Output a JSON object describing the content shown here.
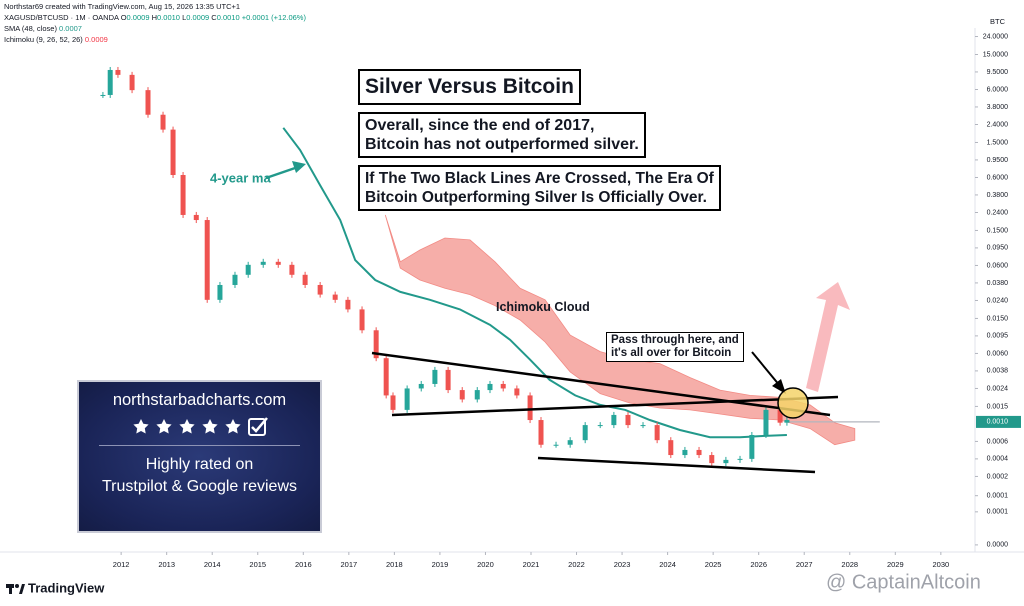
{
  "header": {
    "attribution": "Northstar69 created with TradingView.com, Aug 15, 2026 13:35 UTC+1",
    "symbol": "XAGUSD/BTCUSD · 1M · OANDA",
    "ohlc": [
      {
        "key": "O",
        "value": "0.0009"
      },
      {
        "key": "H",
        "value": "0.0010"
      },
      {
        "key": "L",
        "value": "0.0009"
      },
      {
        "key": "C",
        "value": "0.0010"
      }
    ],
    "change": "+0.0001 (+12.06%)"
  },
  "annotations": {
    "title": "Silver Versus Bitcoin",
    "note1": [
      "Overall, since the end of 2017,",
      "Bitcoin has not outperformed silver."
    ],
    "note2": [
      "If The Two Black Lines Are Crossed, The Era Of",
      "Bitcoin Outperforming Silver Is Officially Over."
    ],
    "ma_label": "4-year ma",
    "callout": [
      "Pass through here, and",
      "it's all over for Bitcoin"
    ]
  },
  "badge": {
    "site": "northstarbadcharts.com",
    "lines": [
      "Highly rated on",
      "Trustpilot & Google reviews"
    ]
  },
  "footer": {
    "brand": "TradingView",
    "watermark": "@ CaptainAltcoin"
  },
  "chart_data": {
    "type": "candlestick",
    "currency": "BTC",
    "up_color": "#26a69a",
    "down_color": "#ef5350",
    "log_scale": true,
    "grid": false,
    "xlim": [
      2009.34,
      2030.75
    ],
    "xticks": [
      2012,
      2013,
      2014,
      2015,
      2016,
      2017,
      2018,
      2019,
      2020,
      2021,
      2022,
      2023,
      2024,
      2025,
      2026,
      2027,
      2028,
      2029,
      2030
    ],
    "ylim": [
      3.5e-05,
      30
    ],
    "yticks": [
      {
        "value": 24,
        "label": "24.0000"
      },
      {
        "value": 15,
        "label": "15.0000"
      },
      {
        "value": 9.5,
        "label": "9.5000"
      },
      {
        "value": 6,
        "label": "6.0000"
      },
      {
        "value": 3.8,
        "label": "3.8000"
      },
      {
        "value": 2.4,
        "label": "2.4000"
      },
      {
        "value": 1.5,
        "label": "1.5000"
      },
      {
        "value": 0.95,
        "label": "0.9500"
      },
      {
        "value": 0.6,
        "label": "0.6000"
      },
      {
        "value": 0.38,
        "label": "0.3800"
      },
      {
        "value": 0.24,
        "label": "0.2400"
      },
      {
        "value": 0.15,
        "label": "0.1500"
      },
      {
        "value": 0.095,
        "label": "0.0950"
      },
      {
        "value": 0.06,
        "label": "0.0600"
      },
      {
        "value": 0.038,
        "label": "0.0380"
      },
      {
        "value": 0.024,
        "label": "0.0240"
      },
      {
        "value": 0.015,
        "label": "0.0150"
      },
      {
        "value": 0.0095,
        "label": "0.0095"
      },
      {
        "value": 0.006,
        "label": "0.0060"
      },
      {
        "value": 0.0038,
        "label": "0.0038"
      },
      {
        "value": 0.0024,
        "label": "0.0024"
      },
      {
        "value": 0.0015,
        "label": "0.0015"
      },
      {
        "value": 0.0006,
        "label": "0.0006"
      },
      {
        "value": 0.00038,
        "label": "0.0004"
      },
      {
        "value": 0.00024,
        "label": "0.0002"
      },
      {
        "value": 0.000145,
        "label": "0.0001"
      },
      {
        "value": 9.5e-05,
        "label": "0.0001"
      },
      {
        "value": 4e-05,
        "label": "0.0000"
      }
    ],
    "last_price": {
      "value": 0.001,
      "label": "0.0010",
      "color": "#22998b"
    },
    "x": [
      2011.6,
      2011.76,
      2011.93,
      2012.24,
      2012.59,
      2012.92,
      2013.14,
      2013.36,
      2013.65,
      2013.89,
      2014.17,
      2014.5,
      2014.79,
      2015.12,
      2015.45,
      2015.75,
      2016.04,
      2016.37,
      2016.7,
      2016.98,
      2017.29,
      2017.6,
      2017.82,
      2017.97,
      2018.28,
      2018.59,
      2018.89,
      2019.18,
      2019.49,
      2019.82,
      2020.1,
      2020.39,
      2020.69,
      2020.98,
      2021.22,
      2021.55,
      2021.86,
      2022.19,
      2022.52,
      2022.82,
      2023.13,
      2023.46,
      2023.77,
      2024.07,
      2024.38,
      2024.69,
      2024.97,
      2025.28,
      2025.59,
      2025.85,
      2026.16,
      2026.47,
      2026.62
    ],
    "close": [
      5.2,
      10,
      8.8,
      5.9,
      3.1,
      2.1,
      0.64,
      0.225,
      0.197,
      0.0244,
      0.036,
      0.047,
      0.061,
      0.066,
      0.061,
      0.047,
      0.036,
      0.028,
      0.0244,
      0.019,
      0.011,
      0.0053,
      0.002,
      0.00137,
      0.0024,
      0.0027,
      0.0039,
      0.0023,
      0.0018,
      0.0023,
      0.0027,
      0.0024,
      0.002,
      0.00105,
      0.00055,
      0.00055,
      0.00062,
      0.00092,
      0.00092,
      0.0012,
      0.00092,
      0.00092,
      0.00062,
      0.00042,
      0.00048,
      0.00042,
      0.00034,
      0.00037,
      0.00038,
      0.00071,
      0.00137,
      0.00098,
      0.00105
    ],
    "sma": {
      "name": "SMA (48, close)",
      "legend_value": "0.0007",
      "color": "#22998b",
      "x": [
        2015.56,
        2015.93,
        2016.37,
        2016.81,
        2017.14,
        2017.58,
        2018.13,
        2018.78,
        2019.44,
        2020.1,
        2020.54,
        2020.98,
        2021.41,
        2021.97,
        2022.52,
        2023.07,
        2023.61,
        2024.27,
        2024.93,
        2025.59,
        2026.03,
        2026.62
      ],
      "values": [
        2.2,
        1.23,
        0.49,
        0.197,
        0.069,
        0.041,
        0.03,
        0.0244,
        0.019,
        0.0127,
        0.0086,
        0.0051,
        0.003,
        0.002,
        0.00156,
        0.00137,
        0.00105,
        0.00081,
        0.00067,
        0.00067,
        0.00069,
        0.00071
      ]
    },
    "cloud": {
      "name": "Ichimoku (9, 26, 52, 26)",
      "legend_value": "0.0009",
      "label": "Ichimoku Cloud",
      "color": "#f28b85",
      "x": [
        2017.8,
        2018.13,
        2018.56,
        2019.11,
        2019.66,
        2020.21,
        2020.76,
        2021.31,
        2021.86,
        2022.52,
        2023.17,
        2023.83,
        2024.49,
        2025.15,
        2025.81,
        2026.47,
        2027.13,
        2027.67,
        2028.11
      ],
      "upper": [
        0.225,
        0.066,
        0.09,
        0.123,
        0.117,
        0.066,
        0.033,
        0.0244,
        0.0097,
        0.0063,
        0.0051,
        0.0046,
        0.0032,
        0.0023,
        0.002,
        0.0019,
        0.00156,
        0.00098,
        0.00084
      ],
      "lower": [
        0.225,
        0.056,
        0.041,
        0.033,
        0.028,
        0.021,
        0.0144,
        0.0081,
        0.0037,
        0.0021,
        0.00164,
        0.00144,
        0.00137,
        0.00123,
        0.0011,
        0.00105,
        0.00084,
        0.00055,
        0.00062
      ]
    }
  }
}
